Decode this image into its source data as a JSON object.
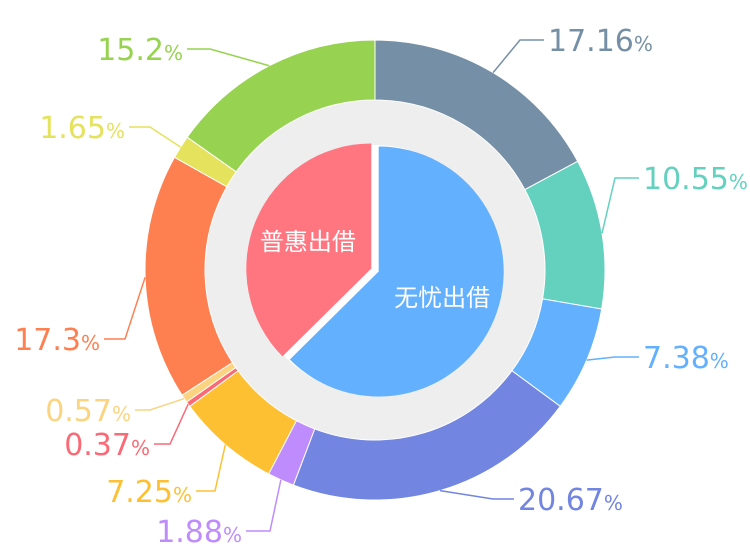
{
  "chart_data": {
    "type": "pie",
    "inner": {
      "type": "pie",
      "slices": [
        {
          "label": "无忧出借",
          "value": 62.58,
          "color": "#62b0fe"
        },
        {
          "label": "普惠出借",
          "value": 37.42,
          "color": "#ff7580"
        }
      ]
    },
    "outer": {
      "type": "donut",
      "slices": [
        {
          "label": "17.16",
          "value": 17.16,
          "color": "#7590a6"
        },
        {
          "label": "10.55",
          "value": 10.55,
          "color": "#63d1be"
        },
        {
          "label": "7.38",
          "value": 7.38,
          "color": "#62b0fe"
        },
        {
          "label": "20.67",
          "value": 20.67,
          "color": "#7285e0"
        },
        {
          "label": "1.88",
          "value": 1.88,
          "color": "#bf8cfd"
        },
        {
          "label": "7.25",
          "value": 7.25,
          "color": "#fdc032"
        },
        {
          "label": "0.37",
          "value": 0.37,
          "color": "#fa6a76"
        },
        {
          "label": "0.57",
          "value": 0.57,
          "color": "#fbd481"
        },
        {
          "label": "17.3",
          "value": 17.3,
          "color": "#fe7f50"
        },
        {
          "label": "1.65",
          "value": 1.65,
          "color": "#e5e25d"
        },
        {
          "label": "15.2",
          "value": 15.2,
          "color": "#97d350"
        }
      ],
      "percent_sign": "%"
    },
    "track_color": "#eeeeee",
    "start_angle": "top, clockwise"
  }
}
